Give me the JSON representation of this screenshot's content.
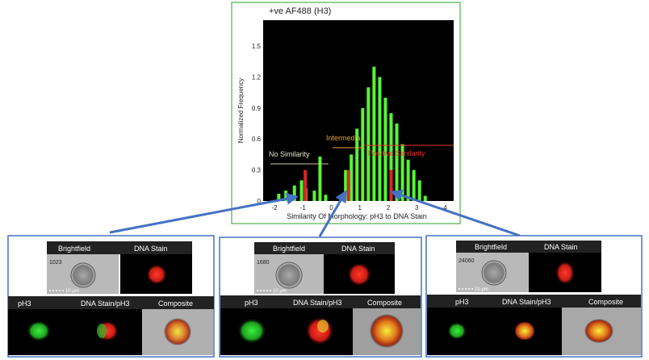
{
  "histogram": {
    "title": "+ve AF488 (H3)",
    "xlabel": "Similarity Of Morphology: pH3 to DNA Stain",
    "ylabel": "Normalized Frequency",
    "region_labels": {
      "no_similarity": "No Similarity",
      "intermediate": "Intermedia",
      "positive_similarity": "Positive Similarity"
    },
    "colors": {
      "background": "#000000",
      "bars": "#57f534",
      "frame": "#6dc46d",
      "marker": "#d7262b",
      "intermediate": "#e3a327",
      "positive": "#e8352b",
      "no_similarity": "#cccc99",
      "arrow": "#4472c4"
    }
  },
  "chart_data": {
    "type": "bar",
    "title": "+ve AF488 (H3)",
    "xlabel": "Similarity Of Morphology: pH3 to DNA Stain",
    "ylabel": "Normalized Frequency",
    "xlim": [
      -2.4,
      4.3
    ],
    "ylim": [
      0,
      1.75
    ],
    "xticks": [
      "-2",
      "-1",
      "0",
      "1",
      "2",
      "3",
      "4"
    ],
    "yticks": [
      "0",
      "0.3",
      "0.6",
      "0.9",
      "1.2",
      "1.5"
    ],
    "x": [
      -1.85,
      -1.6,
      -1.3,
      -1.05,
      -0.9,
      -0.6,
      -0.4,
      -0.2,
      0.5,
      0.7,
      0.9,
      1.1,
      1.3,
      1.5,
      1.7,
      1.9,
      2.1,
      2.3,
      2.5,
      2.7,
      2.9,
      3.1,
      3.3
    ],
    "values": [
      0.07,
      0.1,
      0.15,
      0.2,
      0.12,
      0.1,
      0.43,
      0.06,
      0.3,
      0.45,
      0.7,
      0.9,
      1.1,
      1.3,
      1.2,
      1.0,
      0.85,
      0.75,
      0.55,
      0.4,
      0.3,
      0.2,
      0.05
    ],
    "markers_x": [
      -0.92,
      0.6,
      2.1
    ]
  },
  "cells": [
    {
      "labels": {
        "brightfield": "Brightfield",
        "dna": "DNA Stain",
        "ph3": "pH3",
        "dna_ph3": "DNA Stain/pH3",
        "composite": "Composite"
      },
      "id": "1023",
      "scale": "10 μm"
    },
    {
      "labels": {
        "brightfield": "Brightfield",
        "dna": "DNA Stain",
        "ph3": "pH3",
        "dna_ph3": "DNA Stain/pH3",
        "composite": "Composite"
      },
      "id": "1680",
      "scale": "10 μm"
    },
    {
      "labels": {
        "brightfield": "Brightfield",
        "dna": "DNA Stain",
        "ph3": "pH3",
        "dna_ph3": "DNA Stain/pH3",
        "composite": "Composite"
      },
      "id": "24060",
      "scale": "10 μm"
    }
  ]
}
